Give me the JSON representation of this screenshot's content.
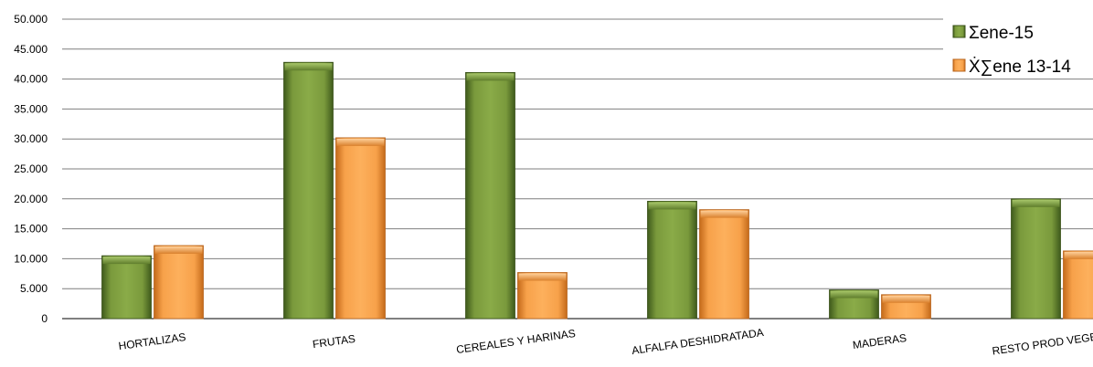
{
  "chart_data": {
    "type": "bar",
    "title": "",
    "xlabel": "",
    "ylabel": "",
    "ylim": [
      0,
      50000
    ],
    "yticks": [
      0,
      5000,
      10000,
      15000,
      20000,
      25000,
      30000,
      35000,
      40000,
      45000,
      50000
    ],
    "ytick_labels": [
      "0",
      "5.000",
      "10.000",
      "15.000",
      "20.000",
      "25.000",
      "30.000",
      "35.000",
      "40.000",
      "45.000",
      "50.000"
    ],
    "grid": true,
    "legend_position": "top-right",
    "categories": [
      "HORTALIZAS",
      "FRUTAS",
      "CEREALES Y HARINAS",
      "ALFALFA DESHIDRATADA",
      "MADERAS",
      "RESTO PROD VEGETALES"
    ],
    "series": [
      {
        "name": "Σene-15",
        "color": "#7a9a3c",
        "values": [
          10500,
          42800,
          41100,
          19600,
          4800,
          20000
        ]
      },
      {
        "name": "Ẋ∑ene 13-14",
        "color": "#f7a14a",
        "values": [
          12200,
          30200,
          7700,
          18200,
          4000,
          11300
        ]
      }
    ]
  }
}
